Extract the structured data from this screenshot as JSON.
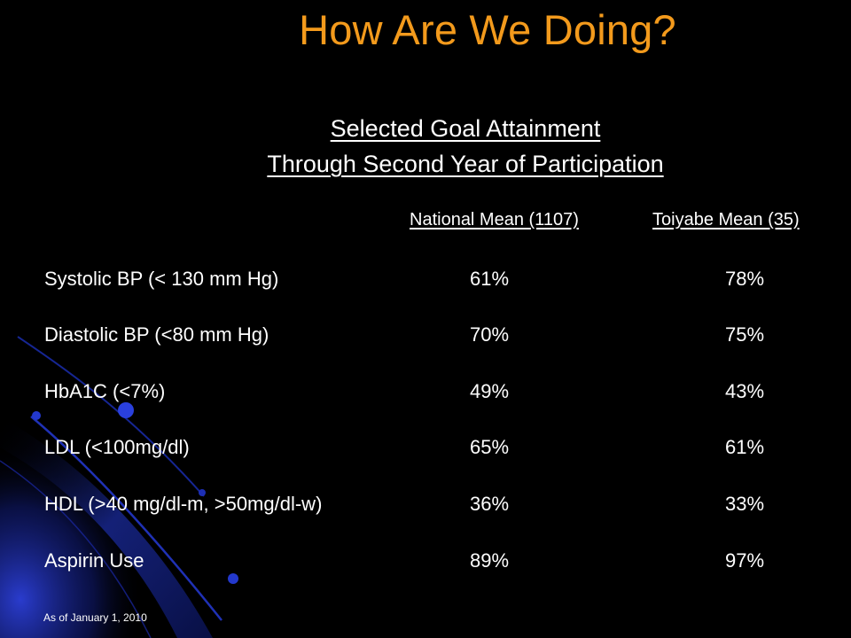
{
  "slide": {
    "title": "How Are We Doing?",
    "subtitle_line1": "Selected Goal Attainment",
    "subtitle_line2": "Through Second Year of Participation",
    "footnote": "As of January 1, 2010"
  },
  "table": {
    "columns": [
      "National Mean (1107)",
      "Toiyabe Mean (35)"
    ],
    "rows": [
      {
        "label": "Systolic BP (< 130 mm Hg)",
        "national": "61%",
        "toiyabe": "78%"
      },
      {
        "label": "Diastolic BP (<80 mm Hg)",
        "national": "70%",
        "toiyabe": "75%"
      },
      {
        "label": "HbA1C (<7%)",
        "national": "49%",
        "toiyabe": "43%"
      },
      {
        "label": "LDL (<100mg/dl)",
        "national": "65%",
        "toiyabe": "61%"
      },
      {
        "label": "HDL (>40 mg/dl-m, >50mg/dl-w)",
        "national": "36%",
        "toiyabe": "33%"
      },
      {
        "label": "Aspirin Use",
        "national": "89%",
        "toiyabe": "97%"
      }
    ]
  },
  "colors": {
    "background": "#000000",
    "title": "#f39a1c",
    "text": "#ffffff",
    "accent_blue": "#2a3fd6"
  }
}
